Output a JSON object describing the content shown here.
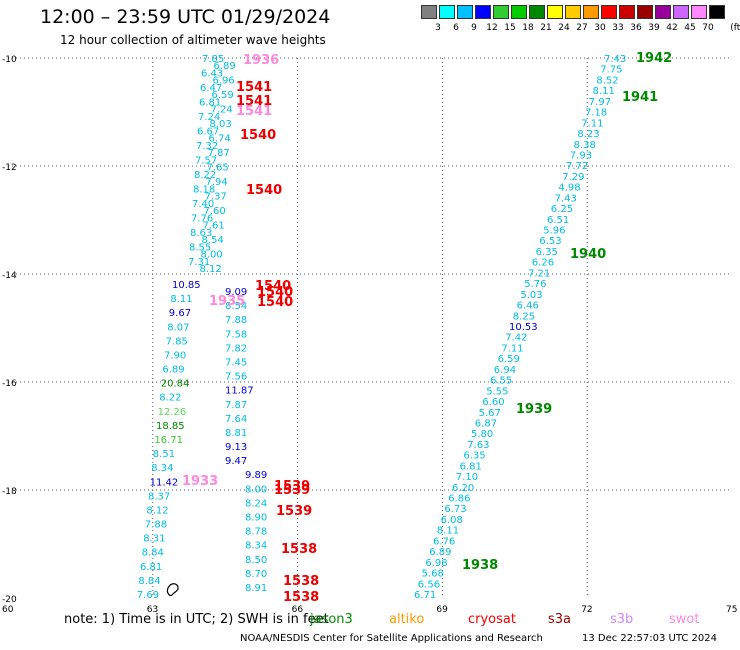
{
  "header": {
    "title": "12:00 – 23:59 UTC 01/29/2024",
    "subtitle": "12 hour collection of altimeter wave heights"
  },
  "colorbar": {
    "unit": "(ft)",
    "cells": [
      {
        "color": "#808080",
        "label": "3"
      },
      {
        "color": "#00ffff",
        "label": "6"
      },
      {
        "color": "#00bfff",
        "label": "9"
      },
      {
        "color": "#0000ff",
        "label": "12"
      },
      {
        "color": "#33cc33",
        "label": "15"
      },
      {
        "color": "#00cc00",
        "label": "18"
      },
      {
        "color": "#008800",
        "label": "21"
      },
      {
        "color": "#ffff00",
        "label": "24"
      },
      {
        "color": "#ffcc00",
        "label": "27"
      },
      {
        "color": "#ff9900",
        "label": "30"
      },
      {
        "color": "#ff0000",
        "label": "33"
      },
      {
        "color": "#cc0000",
        "label": "36"
      },
      {
        "color": "#990000",
        "label": "39"
      },
      {
        "color": "#990099",
        "label": "42"
      },
      {
        "color": "#cc66ff",
        "label": "45"
      },
      {
        "color": "#ff88ff",
        "label": "70"
      },
      {
        "color": "#000000",
        "label": ""
      }
    ]
  },
  "axes": {
    "lat_labels": [
      "-10",
      "-12",
      "-14",
      "-16",
      "-18",
      "-20"
    ],
    "lon_labels": [
      "60",
      "63",
      "66",
      "69",
      "72",
      "75"
    ]
  },
  "track_labels": [
    {
      "text": "1942",
      "color": "#008800"
    },
    {
      "text": "1941",
      "color": "#008800"
    },
    {
      "text": "1940",
      "color": "#008800"
    },
    {
      "text": "1939",
      "color": "#008800"
    },
    {
      "text": "1938",
      "color": "#008800"
    },
    {
      "text": "1936",
      "color": "#ff88dd"
    },
    {
      "text": "1935",
      "color": "#ff88dd"
    },
    {
      "text": "1933",
      "color": "#ff88dd"
    },
    {
      "text": "1541",
      "color": "#ee0000"
    },
    {
      "text": "1541",
      "color": "#ee0000"
    },
    {
      "text": "1541",
      "color": "#ff88dd"
    },
    {
      "text": "1540",
      "color": "#ee0000"
    },
    {
      "text": "1540",
      "color": "#ee0000"
    },
    {
      "text": "1540",
      "color": "#ee0000"
    },
    {
      "text": "1540",
      "color": "#ee0000"
    },
    {
      "text": "1540",
      "color": "#ee0000"
    },
    {
      "text": "1539",
      "color": "#ee0000"
    },
    {
      "text": "1539",
      "color": "#ee0000"
    },
    {
      "text": "1539",
      "color": "#ee0000"
    },
    {
      "text": "1538",
      "color": "#ee0000"
    },
    {
      "text": "1538",
      "color": "#ee0000"
    },
    {
      "text": "1538",
      "color": "#ee0000"
    }
  ],
  "track_a_values": [
    "7.85",
    "6.89",
    "6.43",
    "6.96",
    "6.47",
    "6.59",
    "6.81",
    "7.24",
    "7.24",
    "8.03",
    "6.67",
    "6.74",
    "7.32",
    "7.87",
    "7.57",
    "7.65",
    "8.22",
    "7.94",
    "8.18",
    "7.37",
    "7.40",
    "7.60",
    "7.76",
    "7.61",
    "8.63",
    "8.54",
    "8.55",
    "8.00",
    "7.31",
    "8.12"
  ],
  "track_b_values": [
    "10.85",
    "9.09",
    "8.11",
    "8.54",
    "9.67",
    "7.88",
    "8.07",
    "7.58",
    "7.85",
    "7.82",
    "7.90",
    "7.45",
    "6.89",
    "7.56",
    "20.84",
    "11.87",
    "8.22",
    "7.87",
    "12.26",
    "7.64",
    "18.85",
    "8.81",
    "16.71",
    "9.13",
    "8.51",
    "9.47",
    "8.34",
    "9.89",
    "11.42",
    "8.00",
    "8.37",
    "8.24",
    "8.12",
    "8.90",
    "7.88",
    "8.78",
    "8.31",
    "8.34",
    "8.84",
    "8.50",
    "6.81",
    "8.70",
    "8.84",
    "8.91",
    "7.69"
  ],
  "track_c_values": [
    "7.43",
    "7.75",
    "8.52",
    "8.11",
    "7.97",
    "7.18",
    "7.11",
    "8.23",
    "8.38",
    "7.93",
    "7.72",
    "7.29",
    "4.98",
    "7.43",
    "6.25",
    "6.51",
    "5.96",
    "6.53",
    "6.35",
    "6.26",
    "7.21",
    "5.76",
    "5.03",
    "6.46",
    "8.25",
    "10.53",
    "7.42",
    "7.11",
    "6.59",
    "6.94",
    "6.55",
    "5.55",
    "6.60",
    "5.67",
    "6.87",
    "5.80",
    "7.63",
    "6.35",
    "6.81",
    "7.10",
    "6.20",
    "6.86",
    "6.73",
    "6.08",
    "8.11",
    "6.76",
    "6.89",
    "6.98",
    "5.68",
    "6.56",
    "6.71"
  ],
  "footer": {
    "note": "note: 1) Time is in UTC; 2) SWH is in feet",
    "legend": [
      {
        "name": "jason3",
        "color": "#008800"
      },
      {
        "name": "altiko",
        "color": "#ff9900"
      },
      {
        "name": "cryosat",
        "color": "#ee0000"
      },
      {
        "name": "s3a",
        "color": "#990000"
      },
      {
        "name": "s3b",
        "color": "#cc88ff"
      },
      {
        "name": "swot",
        "color": "#ff88dd"
      }
    ],
    "credit": "NOAA/NESDIS Center for Satellite Applications and Research",
    "timestamp": "13 Dec 22:57:03 UTC 2024"
  }
}
